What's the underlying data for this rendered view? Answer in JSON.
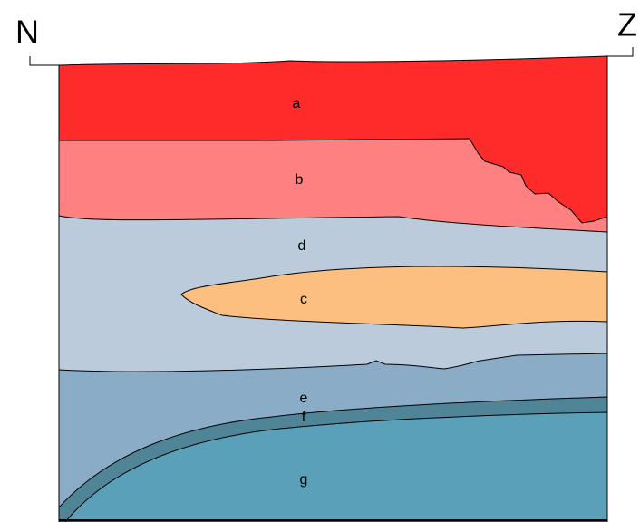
{
  "compass": {
    "left": "N",
    "right": "Z"
  },
  "layers": [
    {
      "label": "a"
    },
    {
      "label": "b"
    },
    {
      "label": "d"
    },
    {
      "label": "c"
    },
    {
      "label": "e"
    },
    {
      "label": "f"
    },
    {
      "label": "g"
    }
  ]
}
